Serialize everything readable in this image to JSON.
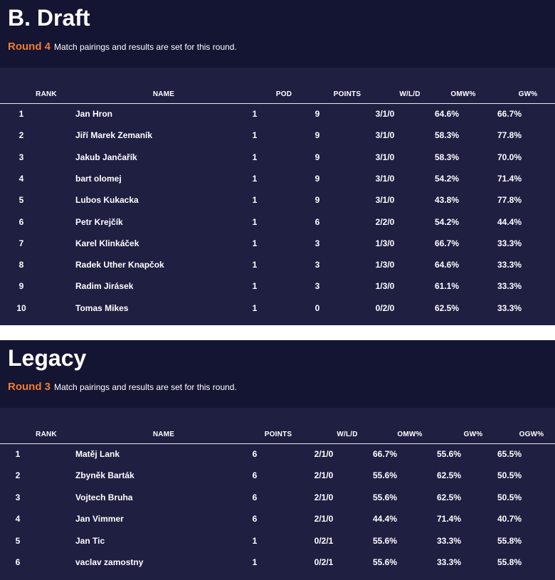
{
  "draft": {
    "title": "B. Draft",
    "round_label": "Round 4",
    "round_desc": "Match pairings and results are set for this round.",
    "headers": [
      "RANK",
      "NAME",
      "POD",
      "POINTS",
      "W/L/D",
      "OMW%",
      "GW%"
    ],
    "rows": [
      [
        "1",
        "Jan Hron",
        "1",
        "9",
        "3/1/0",
        "64.6%",
        "66.7%"
      ],
      [
        "2",
        "Jiří Marek Zemaník",
        "1",
        "9",
        "3/1/0",
        "58.3%",
        "77.8%"
      ],
      [
        "3",
        "Jakub Jančařík",
        "1",
        "9",
        "3/1/0",
        "58.3%",
        "70.0%"
      ],
      [
        "4",
        "bart olomej",
        "1",
        "9",
        "3/1/0",
        "54.2%",
        "71.4%"
      ],
      [
        "5",
        "Lubos Kukacka",
        "1",
        "9",
        "3/1/0",
        "43.8%",
        "77.8%"
      ],
      [
        "6",
        "Petr Krejčík",
        "1",
        "6",
        "2/2/0",
        "54.2%",
        "44.4%"
      ],
      [
        "7",
        "Karel Klinkáček",
        "1",
        "3",
        "1/3/0",
        "66.7%",
        "33.3%"
      ],
      [
        "8",
        "Radek Uther Knapčok",
        "1",
        "3",
        "1/3/0",
        "64.6%",
        "33.3%"
      ],
      [
        "9",
        "Radim Jirásek",
        "1",
        "3",
        "1/3/0",
        "61.1%",
        "33.3%"
      ],
      [
        "10",
        "Tomas Mikes",
        "1",
        "0",
        "0/2/0",
        "62.5%",
        "33.3%"
      ]
    ]
  },
  "legacy": {
    "title": "Legacy",
    "round_label": "Round 3",
    "round_desc": "Match pairings and results are set for this round.",
    "headers": [
      "RANK",
      "NAME",
      "POINTS",
      "W/L/D",
      "OMW%",
      "GW%",
      "OGW%"
    ],
    "rows": [
      [
        "1",
        "Matěj Lank",
        "6",
        "2/1/0",
        "66.7%",
        "55.6%",
        "65.5%"
      ],
      [
        "2",
        "Zbyněk Barták",
        "6",
        "2/1/0",
        "55.6%",
        "62.5%",
        "50.5%"
      ],
      [
        "3",
        "Vojtech Bruha",
        "6",
        "2/1/0",
        "55.6%",
        "62.5%",
        "50.5%"
      ],
      [
        "4",
        "Jan Vimmer",
        "6",
        "2/1/0",
        "44.4%",
        "71.4%",
        "40.7%"
      ],
      [
        "5",
        "Jan Tic",
        "1",
        "0/2/1",
        "55.6%",
        "33.3%",
        "55.8%"
      ],
      [
        "6",
        "vaclav zamostny",
        "1",
        "0/2/1",
        "55.6%",
        "33.3%",
        "55.8%"
      ]
    ]
  },
  "colors": {
    "header_bg": "#141433",
    "table_bg": "#1f1f42",
    "accent": "#f07c2e",
    "text": "#ffffff"
  }
}
